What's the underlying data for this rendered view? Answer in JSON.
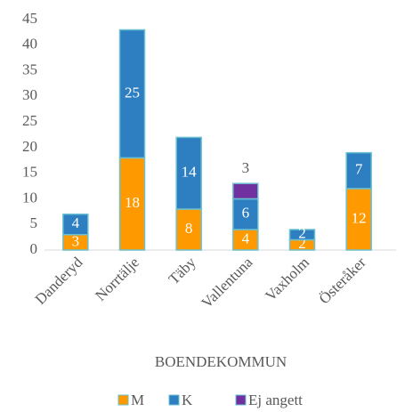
{
  "chart_data": {
    "type": "stacked_bar",
    "x_label": "BOENDEKOMMUN",
    "categories": [
      "Danderyd",
      "Norrtälje",
      "Täby",
      "Vallentuna",
      "Vaxholm",
      "Österåker"
    ],
    "series": [
      {
        "name": "M",
        "color": "#ff9900",
        "values": [
          3,
          18,
          8,
          4,
          2,
          12
        ]
      },
      {
        "name": "K",
        "color": "#2e7fc2",
        "values": [
          4,
          25,
          14,
          6,
          2,
          7
        ]
      },
      {
        "name": "Ej angett",
        "color": "#7030a0",
        "values": [
          null,
          null,
          null,
          3,
          null,
          null
        ]
      }
    ],
    "ylim": [
      0,
      45
    ],
    "yticks": [
      0,
      5,
      10,
      15,
      20,
      25,
      30,
      35,
      40,
      45
    ],
    "grid": false,
    "legend": "bottom"
  }
}
